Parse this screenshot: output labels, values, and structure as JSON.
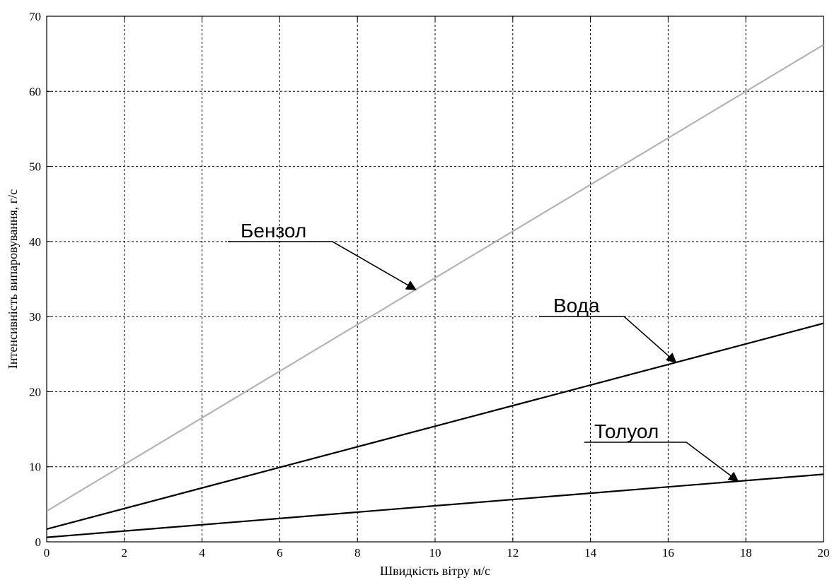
{
  "chart_data": {
    "type": "line",
    "xlabel": "Швидкість вітру м/с",
    "ylabel": "Інтенсивність випаровування, г/с",
    "xlim": [
      0,
      20
    ],
    "ylim": [
      0,
      70
    ],
    "xticks": [
      0,
      2,
      4,
      6,
      8,
      10,
      12,
      14,
      16,
      18,
      20
    ],
    "yticks": [
      0,
      10,
      20,
      30,
      40,
      50,
      60,
      70
    ],
    "grid": true,
    "series": [
      {
        "name": "Бензол",
        "color": "#b4b4b4",
        "x": [
          0,
          20
        ],
        "y": [
          4.1,
          66.2
        ]
      },
      {
        "name": "Вода",
        "color": "#000000",
        "x": [
          0,
          20
        ],
        "y": [
          1.7,
          29.1
        ]
      },
      {
        "name": "Толуол",
        "color": "#000000",
        "x": [
          0,
          20
        ],
        "y": [
          0.6,
          9.0
        ]
      }
    ],
    "annotations": [
      {
        "text": "Бензол",
        "arrow_to_x": 9.5
      },
      {
        "text": "Вода",
        "arrow_to_x": 16.2
      },
      {
        "text": "Толуол",
        "arrow_to_x": 17.8
      }
    ]
  }
}
